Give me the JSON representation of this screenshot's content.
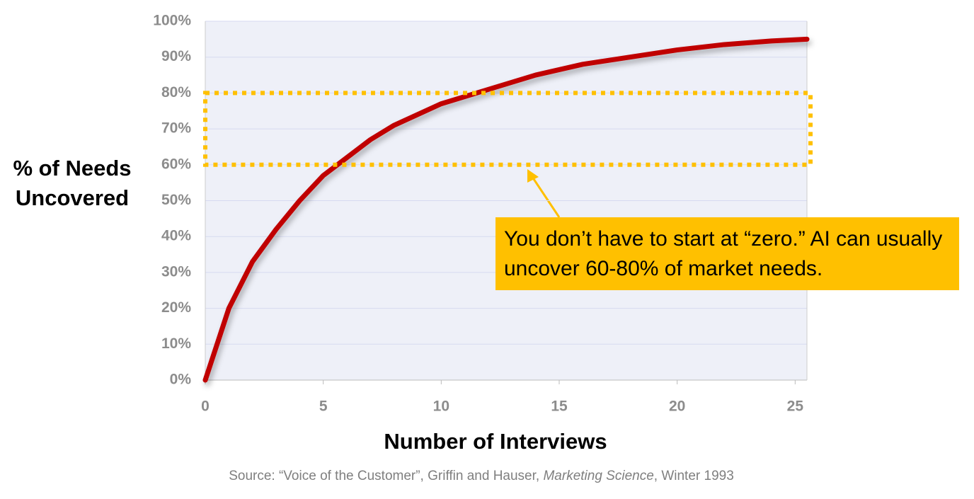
{
  "chart_data": {
    "type": "line",
    "ylabel": [
      "% of Needs",
      "Uncovered"
    ],
    "xlabel": "Number of Interviews",
    "x": [
      0,
      1,
      2,
      3,
      4,
      5,
      6,
      7,
      8,
      9,
      10,
      12,
      14,
      16,
      18,
      20,
      22,
      24,
      25.5
    ],
    "values": [
      0,
      20,
      33,
      42,
      50,
      57,
      62,
      67,
      71,
      74,
      77,
      81,
      85,
      88,
      90,
      92,
      93.5,
      94.5,
      95
    ],
    "color": "#c00000",
    "xlim": [
      0,
      25.5
    ],
    "ylim": [
      0,
      100
    ],
    "xticks": [
      0,
      5,
      10,
      15,
      20,
      25
    ],
    "yticks": [
      {
        "value": 0,
        "label": "0%"
      },
      {
        "value": 10,
        "label": "10%"
      },
      {
        "value": 20,
        "label": "20%"
      },
      {
        "value": 30,
        "label": "30%"
      },
      {
        "value": 40,
        "label": "40%"
      },
      {
        "value": 50,
        "label": "50%"
      },
      {
        "value": 60,
        "label": "60%"
      },
      {
        "value": 70,
        "label": "70%"
      },
      {
        "value": 80,
        "label": "80%"
      },
      {
        "value": 90,
        "label": "90%"
      },
      {
        "value": 100,
        "label": "100%"
      }
    ],
    "grid": true,
    "band": [
      60,
      80
    ],
    "band_color": "#ffc000",
    "annotation": "You don’t have to start at “zero.” AI can usually uncover 60-80% of market needs.",
    "source": [
      "Source: “Voice of the Customer”, Griffin and Hauser, ",
      "Marketing Science",
      ", Winter 1993"
    ]
  }
}
